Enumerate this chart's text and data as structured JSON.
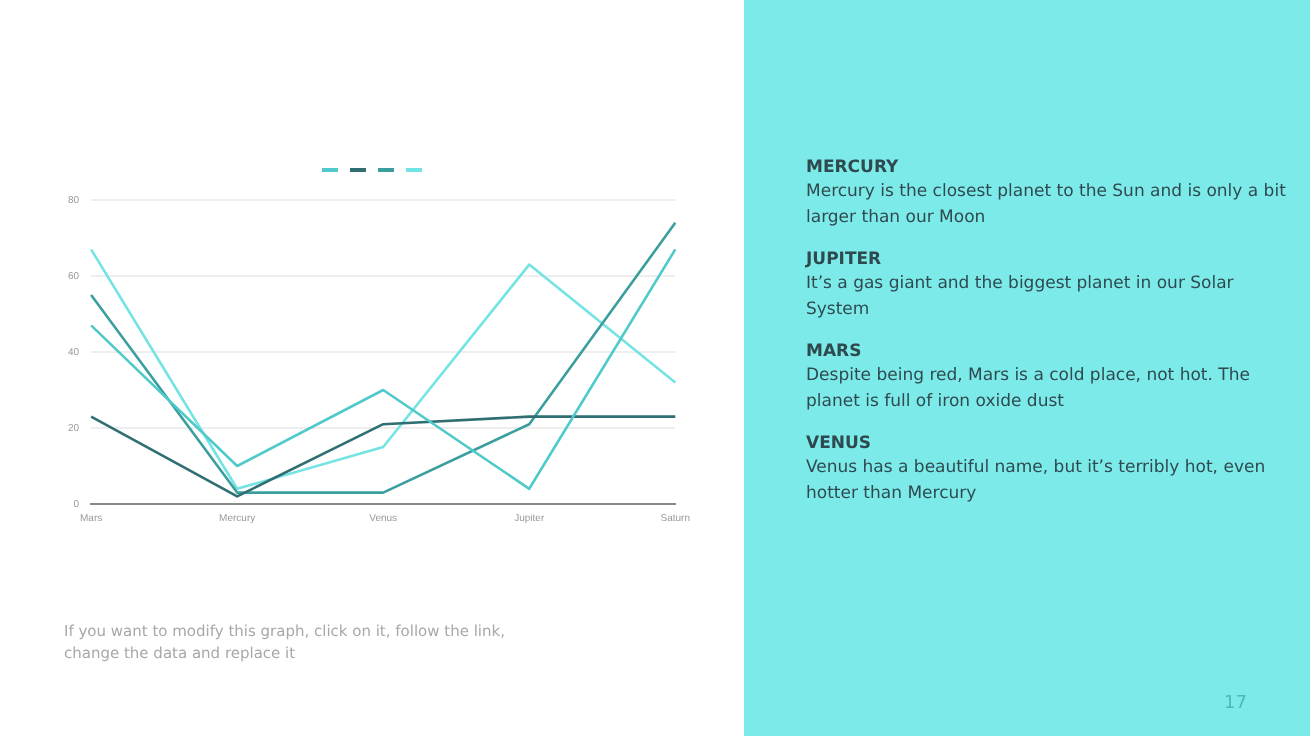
{
  "chart_data": {
    "type": "line",
    "categories": [
      "Mars",
      "Mercury",
      "Venus",
      "Jupiter",
      "Saturn"
    ],
    "series": [
      {
        "color": "#4fc9c9",
        "values": [
          47,
          10,
          30,
          4,
          67
        ]
      },
      {
        "color": "#2f6f73",
        "values": [
          23,
          2,
          21,
          23,
          23
        ]
      },
      {
        "color": "#3b9e9e",
        "values": [
          55,
          3,
          3,
          21,
          74
        ]
      },
      {
        "color": "#73e3e3",
        "values": [
          67,
          4,
          15,
          63,
          32
        ]
      }
    ],
    "ylim": [
      0,
      80
    ],
    "yticks": [
      0,
      20,
      40,
      60,
      80
    ],
    "grid": "y",
    "marker": "none",
    "line_style": "solid",
    "annotations": [
      "MERCURY",
      "Mercury is the closest planet to the Sun and is only a bit larger than our Moon",
      "JUPITER",
      "It’s a gas giant and the biggest planet in our Solar System",
      "MARS",
      "Despite being red, Mars is a cold place, not hot. The planet is full of iron oxide dust",
      "VENUS",
      "Venus has a beautiful name, but it’s terribly hot, even hotter than Mercury",
      "If you want to modify this graph, click on it, follow the link, change the data and replace it",
      "17"
    ]
  }
}
